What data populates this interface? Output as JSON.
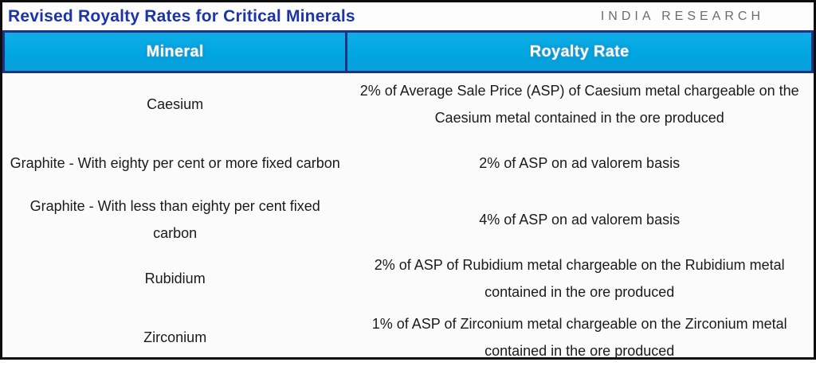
{
  "title": "Revised Royalty Rates for Critical Minerals",
  "brand": "INDIA RESEARCH",
  "colors": {
    "title_text": "#1b35a8",
    "header_bg": "#00a6e2",
    "header_border": "#1f3285",
    "header_text": "#ffffff",
    "body_text": "#1b1b1b",
    "brand_text": "#6d6d6d",
    "frame_border": "#0d0d0d"
  },
  "table": {
    "columns": [
      "Mineral",
      "Royalty Rate"
    ],
    "rows": [
      {
        "mineral": "Caesium",
        "royalty": "2% of Average Sale Price (ASP) of Caesium metal chargeable on the Caesium metal contained in the ore produced"
      },
      {
        "mineral": "Graphite - With eighty per cent or more fixed carbon",
        "royalty": "2% of ASP  on ad valorem basis"
      },
      {
        "mineral": "Graphite - With less than eighty per cent fixed carbon",
        "royalty": "4% of ASP on ad valorem basis"
      },
      {
        "mineral": "Rubidium",
        "royalty": "2% of ASP of Rubidium metal chargeable on the Rubidium metal contained in the ore produced"
      },
      {
        "mineral": "Zirconium",
        "royalty": "1% of ASP of Zirconium metal chargeable on the Zirconium metal contained in the ore produced"
      }
    ]
  }
}
